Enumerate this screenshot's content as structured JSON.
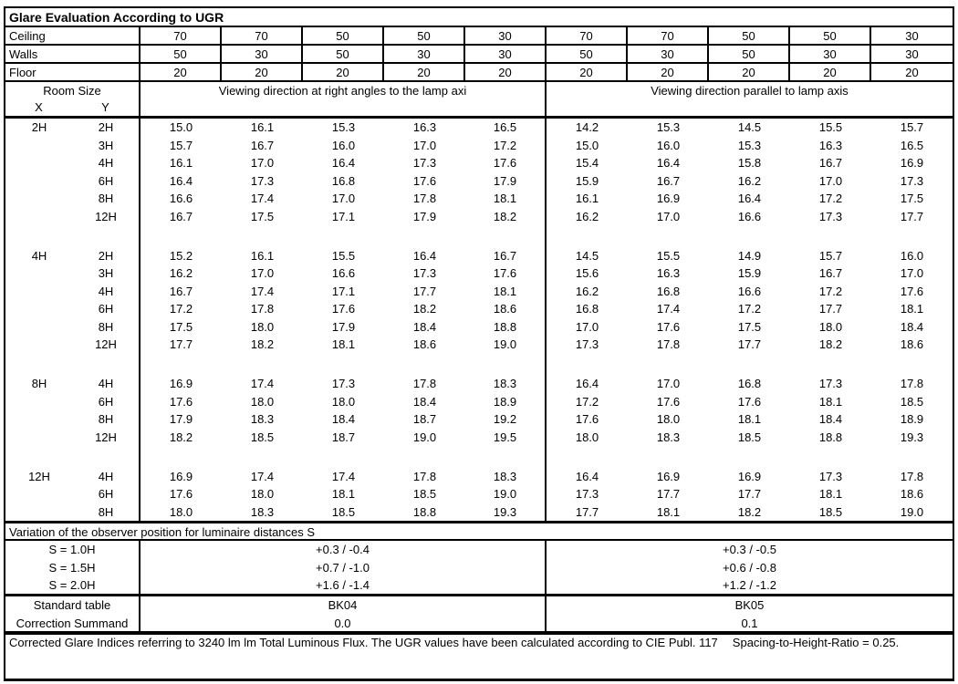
{
  "title": "Glare Evaluation According to UGR",
  "surface_rows": [
    {
      "label": "Ceiling",
      "values": [
        "70",
        "70",
        "50",
        "50",
        "30",
        "70",
        "70",
        "50",
        "50",
        "30"
      ]
    },
    {
      "label": "Walls",
      "values": [
        "50",
        "30",
        "50",
        "30",
        "30",
        "50",
        "30",
        "50",
        "30",
        "30"
      ]
    },
    {
      "label": "Floor",
      "values": [
        "20",
        "20",
        "20",
        "20",
        "20",
        "20",
        "20",
        "20",
        "20",
        "20"
      ]
    }
  ],
  "header": {
    "room_size": "Room Size",
    "x_label": "X",
    "y_label": "Y",
    "left_direction": "Viewing direction at right angles to the lamp axi",
    "right_direction": "Viewing direction parallel to lamp axis"
  },
  "ugr_blocks": [
    {
      "x": "2H",
      "rows": [
        {
          "y": "2H",
          "left": [
            "15.0",
            "16.1",
            "15.3",
            "16.3",
            "16.5"
          ],
          "right": [
            "14.2",
            "15.3",
            "14.5",
            "15.5",
            "15.7"
          ]
        },
        {
          "y": "3H",
          "left": [
            "15.7",
            "16.7",
            "16.0",
            "17.0",
            "17.2"
          ],
          "right": [
            "15.0",
            "16.0",
            "15.3",
            "16.3",
            "16.5"
          ]
        },
        {
          "y": "4H",
          "left": [
            "16.1",
            "17.0",
            "16.4",
            "17.3",
            "17.6"
          ],
          "right": [
            "15.4",
            "16.4",
            "15.8",
            "16.7",
            "16.9"
          ]
        },
        {
          "y": "6H",
          "left": [
            "16.4",
            "17.3",
            "16.8",
            "17.6",
            "17.9"
          ],
          "right": [
            "15.9",
            "16.7",
            "16.2",
            "17.0",
            "17.3"
          ]
        },
        {
          "y": "8H",
          "left": [
            "16.6",
            "17.4",
            "17.0",
            "17.8",
            "18.1"
          ],
          "right": [
            "16.1",
            "16.9",
            "16.4",
            "17.2",
            "17.5"
          ]
        },
        {
          "y": "12H",
          "left": [
            "16.7",
            "17.5",
            "17.1",
            "17.9",
            "18.2"
          ],
          "right": [
            "16.2",
            "17.0",
            "16.6",
            "17.3",
            "17.7"
          ]
        }
      ]
    },
    {
      "x": "4H",
      "rows": [
        {
          "y": "2H",
          "left": [
            "15.2",
            "16.1",
            "15.5",
            "16.4",
            "16.7"
          ],
          "right": [
            "14.5",
            "15.5",
            "14.9",
            "15.7",
            "16.0"
          ]
        },
        {
          "y": "3H",
          "left": [
            "16.2",
            "17.0",
            "16.6",
            "17.3",
            "17.6"
          ],
          "right": [
            "15.6",
            "16.3",
            "15.9",
            "16.7",
            "17.0"
          ]
        },
        {
          "y": "4H",
          "left": [
            "16.7",
            "17.4",
            "17.1",
            "17.7",
            "18.1"
          ],
          "right": [
            "16.2",
            "16.8",
            "16.6",
            "17.2",
            "17.6"
          ]
        },
        {
          "y": "6H",
          "left": [
            "17.2",
            "17.8",
            "17.6",
            "18.2",
            "18.6"
          ],
          "right": [
            "16.8",
            "17.4",
            "17.2",
            "17.7",
            "18.1"
          ]
        },
        {
          "y": "8H",
          "left": [
            "17.5",
            "18.0",
            "17.9",
            "18.4",
            "18.8"
          ],
          "right": [
            "17.0",
            "17.6",
            "17.5",
            "18.0",
            "18.4"
          ]
        },
        {
          "y": "12H",
          "left": [
            "17.7",
            "18.2",
            "18.1",
            "18.6",
            "19.0"
          ],
          "right": [
            "17.3",
            "17.8",
            "17.7",
            "18.2",
            "18.6"
          ]
        }
      ]
    },
    {
      "x": "8H",
      "rows": [
        {
          "y": "4H",
          "left": [
            "16.9",
            "17.4",
            "17.3",
            "17.8",
            "18.3"
          ],
          "right": [
            "16.4",
            "17.0",
            "16.8",
            "17.3",
            "17.8"
          ]
        },
        {
          "y": "6H",
          "left": [
            "17.6",
            "18.0",
            "18.0",
            "18.4",
            "18.9"
          ],
          "right": [
            "17.2",
            "17.6",
            "17.6",
            "18.1",
            "18.5"
          ]
        },
        {
          "y": "8H",
          "left": [
            "17.9",
            "18.3",
            "18.4",
            "18.7",
            "19.2"
          ],
          "right": [
            "17.6",
            "18.0",
            "18.1",
            "18.4",
            "18.9"
          ]
        },
        {
          "y": "12H",
          "left": [
            "18.2",
            "18.5",
            "18.7",
            "19.0",
            "19.5"
          ],
          "right": [
            "18.0",
            "18.3",
            "18.5",
            "18.8",
            "19.3"
          ]
        }
      ]
    },
    {
      "x": "12H",
      "rows": [
        {
          "y": "4H",
          "left": [
            "16.9",
            "17.4",
            "17.4",
            "17.8",
            "18.3"
          ],
          "right": [
            "16.4",
            "16.9",
            "16.9",
            "17.3",
            "17.8"
          ]
        },
        {
          "y": "6H",
          "left": [
            "17.6",
            "18.0",
            "18.1",
            "18.5",
            "19.0"
          ],
          "right": [
            "17.3",
            "17.7",
            "17.7",
            "18.1",
            "18.6"
          ]
        },
        {
          "y": "8H",
          "left": [
            "18.0",
            "18.3",
            "18.5",
            "18.8",
            "19.3"
          ],
          "right": [
            "17.7",
            "18.1",
            "18.2",
            "18.5",
            "19.0"
          ]
        }
      ]
    }
  ],
  "variation": {
    "title": "Variation of the observer position for luminaire distances S",
    "rows": [
      {
        "label": "S = 1.0H",
        "left": "+0.3 / -0.4",
        "right": "+0.3 / -0.5"
      },
      {
        "label": "S = 1.5H",
        "left": "+0.7 / -1.0",
        "right": "+0.6 / -0.8"
      },
      {
        "label": "S = 2.0H",
        "left": "+1.6 / -1.4",
        "right": "+1.2 / -1.2"
      }
    ]
  },
  "summary": {
    "rows": [
      {
        "label": "Standard table",
        "left": "BK04",
        "right": "BK05"
      },
      {
        "label": "Correction Summand",
        "left": "0.0",
        "right": "0.1"
      }
    ]
  },
  "footer": {
    "text": "Corrected Glare Indices referring to 3240 lm lm Total Luminous Flux. The UGR values have been calculated according to CIE Publ. 117",
    "ratio": "Spacing-to-Height-Ratio = 0.25."
  }
}
